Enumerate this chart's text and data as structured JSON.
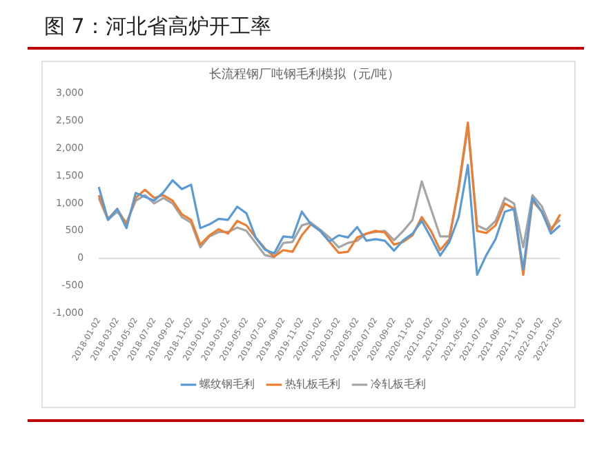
{
  "chart_data": {
    "type": "line",
    "title": "图 7：河北省高炉开工率",
    "subtitle": "长流程钢厂吨钢毛利模拟（元/吨）",
    "categories": [
      "2018-01-02",
      null,
      "2018-03-02",
      null,
      "2018-05-02",
      null,
      "2018-07-02",
      null,
      "2018-09-02",
      null,
      "2018-11-02",
      null,
      "2019-01-02",
      null,
      "2019-03-02",
      null,
      "2019-05-02",
      null,
      "2019-07-02",
      null,
      "2019-09-02",
      null,
      "2019-11-02",
      null,
      "2020-01-02",
      null,
      "2020-03-02",
      null,
      "2020-05-02",
      null,
      "2020-07-02",
      null,
      "2020-09-02",
      null,
      "2020-11-02",
      null,
      "2021-01-02",
      null,
      "2021-03-02",
      null,
      "2021-05-02",
      null,
      "2021-07-02",
      null,
      "2021-09-02",
      null,
      "2021-11-02",
      null,
      "2022-01-02",
      null,
      "2022-03-02"
    ],
    "series": [
      {
        "name": "螺纹钢毛利",
        "color": "#5b9bd5",
        "values": [
          1300,
          700,
          900,
          550,
          1190,
          1120,
          1050,
          1200,
          1420,
          1260,
          1340,
          550,
          620,
          720,
          700,
          940,
          820,
          380,
          160,
          90,
          400,
          380,
          850,
          620,
          500,
          310,
          420,
          380,
          570,
          320,
          350,
          320,
          140,
          330,
          450,
          680,
          380,
          50,
          300,
          750,
          1700,
          -300,
          60,
          350,
          850,
          900,
          -200,
          1100,
          850,
          450,
          600
        ]
      },
      {
        "name": "热轧板毛利",
        "color": "#ed7d31",
        "values": [
          1150,
          720,
          900,
          620,
          1100,
          1250,
          1100,
          1150,
          1050,
          800,
          700,
          250,
          420,
          530,
          450,
          680,
          600,
          380,
          180,
          30,
          150,
          120,
          420,
          620,
          500,
          300,
          100,
          120,
          380,
          450,
          500,
          470,
          250,
          300,
          420,
          750,
          500,
          150,
          350,
          1300,
          2470,
          500,
          460,
          600,
          1000,
          900,
          -300,
          1050,
          850,
          500,
          800
        ]
      },
      {
        "name": "冷轧板毛利",
        "color": "#a5a5a5",
        "values": [
          1100,
          700,
          850,
          650,
          1050,
          1150,
          1000,
          1100,
          1000,
          750,
          650,
          200,
          400,
          480,
          480,
          560,
          500,
          280,
          60,
          20,
          280,
          300,
          600,
          650,
          520,
          380,
          200,
          280,
          320,
          450,
          480,
          500,
          330,
          500,
          700,
          1400,
          900,
          400,
          400,
          1250,
          2400,
          600,
          520,
          680,
          1100,
          1000,
          200,
          1150,
          950,
          550,
          700
        ]
      }
    ],
    "ylim": [
      -1000,
      3000
    ],
    "yticks": [
      {
        "value": -1000,
        "label": "-1,000"
      },
      {
        "value": -500,
        "label": "-500"
      },
      {
        "value": 0,
        "label": "0"
      },
      {
        "value": 500,
        "label": "500"
      },
      {
        "value": 1000,
        "label": "1,000"
      },
      {
        "value": 1500,
        "label": "1,500"
      },
      {
        "value": 2000,
        "label": "2,000"
      },
      {
        "value": 2500,
        "label": "2,500"
      },
      {
        "value": 3000,
        "label": "3,000"
      }
    ],
    "ref_lines": [
      {
        "axis": "y",
        "value": 0,
        "color": "#d9d9d9"
      }
    ],
    "legend": "bottom"
  }
}
